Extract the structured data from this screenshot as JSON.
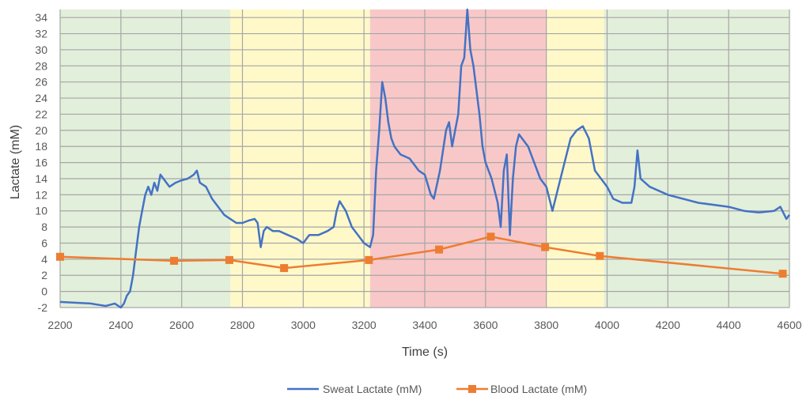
{
  "chart_data": {
    "type": "line",
    "title": "",
    "xlabel": "Time (s)",
    "ylabel": "Lactate (mM)",
    "xlim": [
      2200,
      4600
    ],
    "ylim": [
      -2,
      35
    ],
    "xticks": [
      2200,
      2400,
      2600,
      2800,
      3000,
      3200,
      3400,
      3600,
      3800,
      4000,
      4200,
      4400,
      4600
    ],
    "yticks": [
      -2,
      0,
      2,
      4,
      6,
      8,
      10,
      12,
      14,
      16,
      18,
      20,
      22,
      24,
      26,
      28,
      30,
      32,
      34
    ],
    "grid": true,
    "legend_position": "bottom",
    "shaded_regions": [
      {
        "from": 2200,
        "to": 2760,
        "color": "#E2EFDA"
      },
      {
        "from": 2760,
        "to": 3220,
        "color": "#FFF9C9"
      },
      {
        "from": 3220,
        "to": 3800,
        "color": "#F8C8C8"
      },
      {
        "from": 3800,
        "to": 3990,
        "color": "#FFF9C9"
      },
      {
        "from": 3990,
        "to": 4600,
        "color": "#E2EFDA"
      }
    ],
    "series": [
      {
        "name": "Sweat Lactate (mM)",
        "color": "#4472C4",
        "marker": "none",
        "x": [
          2200,
          2300,
          2350,
          2380,
          2400,
          2410,
          2420,
          2430,
          2440,
          2450,
          2460,
          2470,
          2480,
          2490,
          2500,
          2510,
          2520,
          2530,
          2540,
          2560,
          2580,
          2600,
          2620,
          2640,
          2650,
          2660,
          2680,
          2700,
          2720,
          2740,
          2760,
          2780,
          2800,
          2820,
          2840,
          2850,
          2860,
          2870,
          2880,
          2900,
          2920,
          2950,
          2980,
          3000,
          3020,
          3050,
          3080,
          3100,
          3110,
          3120,
          3140,
          3160,
          3180,
          3200,
          3220,
          3230,
          3240,
          3250,
          3260,
          3270,
          3280,
          3290,
          3300,
          3320,
          3350,
          3380,
          3400,
          3420,
          3430,
          3450,
          3470,
          3480,
          3490,
          3500,
          3510,
          3520,
          3530,
          3540,
          3550,
          3560,
          3570,
          3580,
          3590,
          3600,
          3620,
          3640,
          3650,
          3660,
          3670,
          3680,
          3690,
          3700,
          3710,
          3720,
          3740,
          3760,
          3780,
          3800,
          3820,
          3840,
          3860,
          3880,
          3900,
          3920,
          3940,
          3960,
          3980,
          4000,
          4020,
          4050,
          4080,
          4090,
          4100,
          4110,
          4140,
          4200,
          4300,
          4400,
          4450,
          4500,
          4550,
          4570,
          4590,
          4600
        ],
        "y": [
          -1.3,
          -1.5,
          -1.8,
          -1.5,
          -2,
          -1.5,
          -0.5,
          0,
          2,
          5,
          8,
          10,
          12,
          13,
          12,
          13.5,
          12.5,
          14.5,
          14,
          13,
          13.5,
          13.8,
          14,
          14.5,
          15,
          13.5,
          13,
          11.5,
          10.5,
          9.5,
          9,
          8.5,
          8.5,
          8.8,
          9,
          8.5,
          5.5,
          7.5,
          8,
          7.5,
          7.5,
          7,
          6.5,
          6,
          7,
          7,
          7.5,
          8,
          10,
          11.2,
          10,
          8,
          7,
          6,
          5.5,
          7,
          15,
          20,
          26,
          24,
          21,
          19,
          18,
          17,
          16.5,
          15,
          14.5,
          12,
          11.5,
          15,
          20,
          21,
          18,
          20,
          22,
          28,
          29,
          35,
          30,
          28,
          25,
          22,
          18,
          16,
          14,
          11,
          8,
          15,
          17,
          7,
          14,
          18,
          19.5,
          19,
          18,
          16,
          14,
          13,
          10,
          13,
          16,
          19,
          20,
          20.5,
          19,
          15,
          14,
          13,
          11.5,
          11,
          11,
          13,
          17.5,
          14,
          13,
          12,
          11,
          10.5,
          10,
          9.8,
          10,
          10.5,
          9,
          9.5
        ]
      },
      {
        "name": "Blood Lactate (mM)",
        "color": "#ED7D31",
        "marker": "square",
        "x": [
          2200,
          2575,
          2757,
          2937,
          3216,
          3447,
          3617,
          3796,
          3976,
          4578
        ],
        "y": [
          4.3,
          3.8,
          3.9,
          2.9,
          3.9,
          5.2,
          6.8,
          5.5,
          4.4,
          2.2
        ]
      }
    ]
  }
}
